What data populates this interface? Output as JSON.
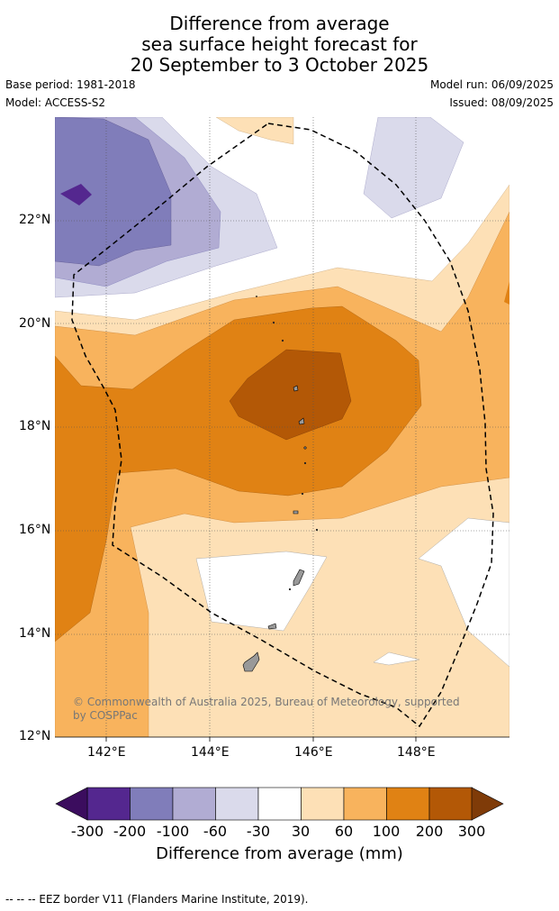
{
  "title": {
    "line1": "Difference from average",
    "line2": "sea surface height forecast for",
    "line3": "20 September to 3 October 2025"
  },
  "meta": {
    "base_period": "Base period: 1981-2018",
    "model": "Model: ACCESS-S2",
    "model_run": "Model run: 06/09/2025",
    "issued": "Issued: 08/09/2025"
  },
  "map": {
    "lat_labels": [
      "22°N",
      "20°N",
      "18°N",
      "16°N",
      "14°N",
      "12°N"
    ],
    "lon_labels": [
      "142°E",
      "144°E",
      "146°E",
      "148°E"
    ],
    "credit": "© Commonwealth of Australia 2025, Bureau of Meteorology, supported by COSPPac"
  },
  "colorbar": {
    "ticks": [
      "-300",
      "-200",
      "-100",
      "-60",
      "-30",
      "30",
      "60",
      "100",
      "200",
      "300"
    ],
    "colors": [
      "#3b0d5e",
      "#54278f",
      "#807dba",
      "#b1acd3",
      "#dadaeb",
      "#ffffff",
      "#fde0b6",
      "#f8b35d",
      "#e08214",
      "#b35806",
      "#7f3b08"
    ],
    "label": "Difference from average (mm)"
  },
  "footer": "--  --  -- EEZ border V11 (Flanders Marine Institute, 2019)."
}
